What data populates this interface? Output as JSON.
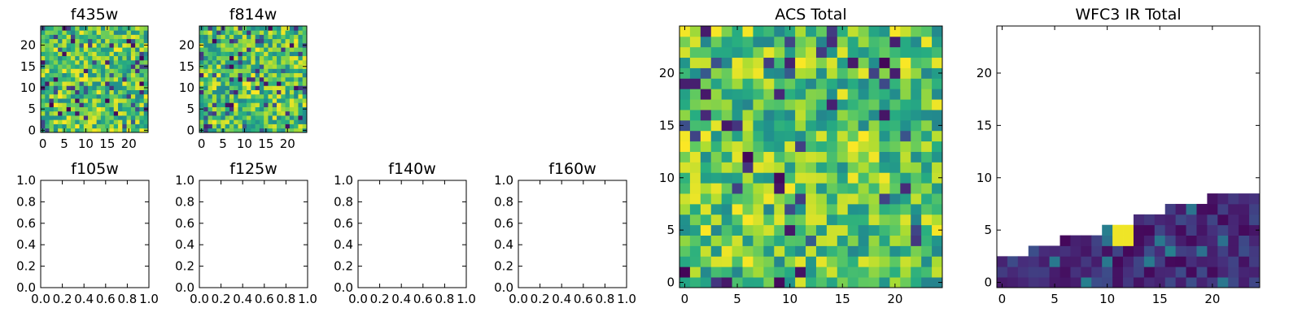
{
  "colormap": "viridis",
  "colors": {
    "viridis_low": "#440154",
    "viridis_mid": "#21918c",
    "viridis_high": "#fde725",
    "axes": "#000000",
    "background": "#ffffff"
  },
  "chart_data": [
    {
      "id": "f435w",
      "type": "heatmap",
      "title": "f435w",
      "grid": [
        25,
        25
      ],
      "xlim": [
        -0.5,
        24.5
      ],
      "ylim": [
        -0.5,
        24.5
      ],
      "xticks": [
        0,
        5,
        10,
        15,
        20
      ],
      "xtick_labels": [
        "0",
        "5",
        "10",
        "15",
        "20"
      ],
      "yticks": [
        0,
        5,
        10,
        15,
        20
      ],
      "ytick_labels": [
        "0",
        "5",
        "10",
        "15",
        "20"
      ],
      "values": "random noise, mostly green-yellow (~0.5–0.9 normalized) with scattered dark blue/purple cells",
      "seed": 11,
      "low_cell_fraction": 0.1
    },
    {
      "id": "f814w",
      "type": "heatmap",
      "title": "f814w",
      "grid": [
        25,
        25
      ],
      "xlim": [
        -0.5,
        24.5
      ],
      "ylim": [
        -0.5,
        24.5
      ],
      "xticks": [
        0,
        5,
        10,
        15,
        20
      ],
      "xtick_labels": [
        "0",
        "5",
        "10",
        "15",
        "20"
      ],
      "yticks": [
        0,
        5,
        10,
        15,
        20
      ],
      "ytick_labels": [
        "0",
        "5",
        "10",
        "15",
        "20"
      ],
      "values": "random noise, mostly green-yellow with scattered dark blue cells",
      "seed": 23,
      "low_cell_fraction": 0.1
    },
    {
      "id": "f105w",
      "type": "heatmap",
      "title": "f105w",
      "empty": true,
      "xlim": [
        0,
        1
      ],
      "ylim": [
        0,
        1
      ],
      "xticks": [
        0,
        0.2,
        0.4,
        0.6,
        0.8,
        1.0
      ],
      "xtick_labels": [
        "0.0",
        "0.2",
        "0.4",
        "0.6",
        "0.8",
        "1.0"
      ],
      "yticks": [
        0,
        0.2,
        0.4,
        0.6,
        0.8,
        1.0
      ],
      "ytick_labels": [
        "0.0",
        "0.2",
        "0.4",
        "0.6",
        "0.8",
        "1.0"
      ]
    },
    {
      "id": "f125w",
      "type": "heatmap",
      "title": "f125w",
      "empty": true,
      "xlim": [
        0,
        1
      ],
      "ylim": [
        0,
        1
      ],
      "xticks": [
        0,
        0.2,
        0.4,
        0.6,
        0.8,
        1.0
      ],
      "xtick_labels": [
        "0.0",
        "0.2",
        "0.4",
        "0.6",
        "0.8",
        "1.0"
      ],
      "yticks": [
        0,
        0.2,
        0.4,
        0.6,
        0.8,
        1.0
      ],
      "ytick_labels": [
        "0.0",
        "0.2",
        "0.4",
        "0.6",
        "0.8",
        "1.0"
      ]
    },
    {
      "id": "f140w",
      "type": "heatmap",
      "title": "f140w",
      "empty": true,
      "xlim": [
        0,
        1
      ],
      "ylim": [
        0,
        1
      ],
      "xticks": [
        0,
        0.2,
        0.4,
        0.6,
        0.8,
        1.0
      ],
      "xtick_labels": [
        "0.0",
        "0.2",
        "0.4",
        "0.6",
        "0.8",
        "1.0"
      ],
      "yticks": [
        0,
        0.2,
        0.4,
        0.6,
        0.8,
        1.0
      ],
      "ytick_labels": [
        "0.0",
        "0.2",
        "0.4",
        "0.6",
        "0.8",
        "1.0"
      ]
    },
    {
      "id": "f160w",
      "type": "heatmap",
      "title": "f160w",
      "empty": true,
      "xlim": [
        0,
        1
      ],
      "ylim": [
        0,
        1
      ],
      "xticks": [
        0,
        0.2,
        0.4,
        0.6,
        0.8,
        1.0
      ],
      "xtick_labels": [
        "0.0",
        "0.2",
        "0.4",
        "0.6",
        "0.8",
        "1.0"
      ],
      "yticks": [
        0,
        0.2,
        0.4,
        0.6,
        0.8,
        1.0
      ],
      "ytick_labels": [
        "0.0",
        "0.2",
        "0.4",
        "0.6",
        "0.8",
        "1.0"
      ]
    },
    {
      "id": "acs_total",
      "type": "heatmap",
      "title": "ACS Total",
      "grid": [
        25,
        25
      ],
      "xlim": [
        -0.5,
        24.5
      ],
      "ylim": [
        -0.5,
        24.5
      ],
      "xticks": [
        0,
        5,
        10,
        15,
        20
      ],
      "xtick_labels": [
        "0",
        "5",
        "10",
        "15",
        "20"
      ],
      "yticks": [
        0,
        5,
        10,
        15,
        20
      ],
      "ytick_labels": [
        "0",
        "5",
        "10",
        "15",
        "20"
      ],
      "values": "random noise, mostly green-yellow with a few dark purple cells",
      "seed": 37,
      "low_cell_fraction": 0.07
    },
    {
      "id": "wfc3_ir_total",
      "type": "heatmap",
      "title": "WFC3 IR Total",
      "grid": [
        25,
        25
      ],
      "xlim": [
        -0.5,
        24.5
      ],
      "ylim": [
        -0.5,
        24.5
      ],
      "xticks": [
        0,
        5,
        10,
        15,
        20
      ],
      "xtick_labels": [
        "0",
        "5",
        "10",
        "15",
        "20"
      ],
      "yticks": [
        0,
        5,
        10,
        15,
        20
      ],
      "ytick_labels": [
        "0",
        "5",
        "10",
        "15",
        "20"
      ],
      "values": "filled only below a rising staircase boundary (upper row index per column), mostly dark purple/blue with a small yellow patch; empty above",
      "fill_top_row_by_column": [
        2,
        2,
        2,
        3,
        3,
        3,
        4,
        4,
        4,
        4,
        5,
        5,
        5,
        6,
        6,
        6,
        7,
        7,
        7,
        7,
        8,
        8,
        8,
        8,
        8
      ],
      "bright_cells": [
        [
          11,
          5
        ],
        [
          12,
          5
        ],
        [
          12,
          4
        ],
        [
          11,
          4
        ]
      ],
      "seed": 51
    }
  ]
}
